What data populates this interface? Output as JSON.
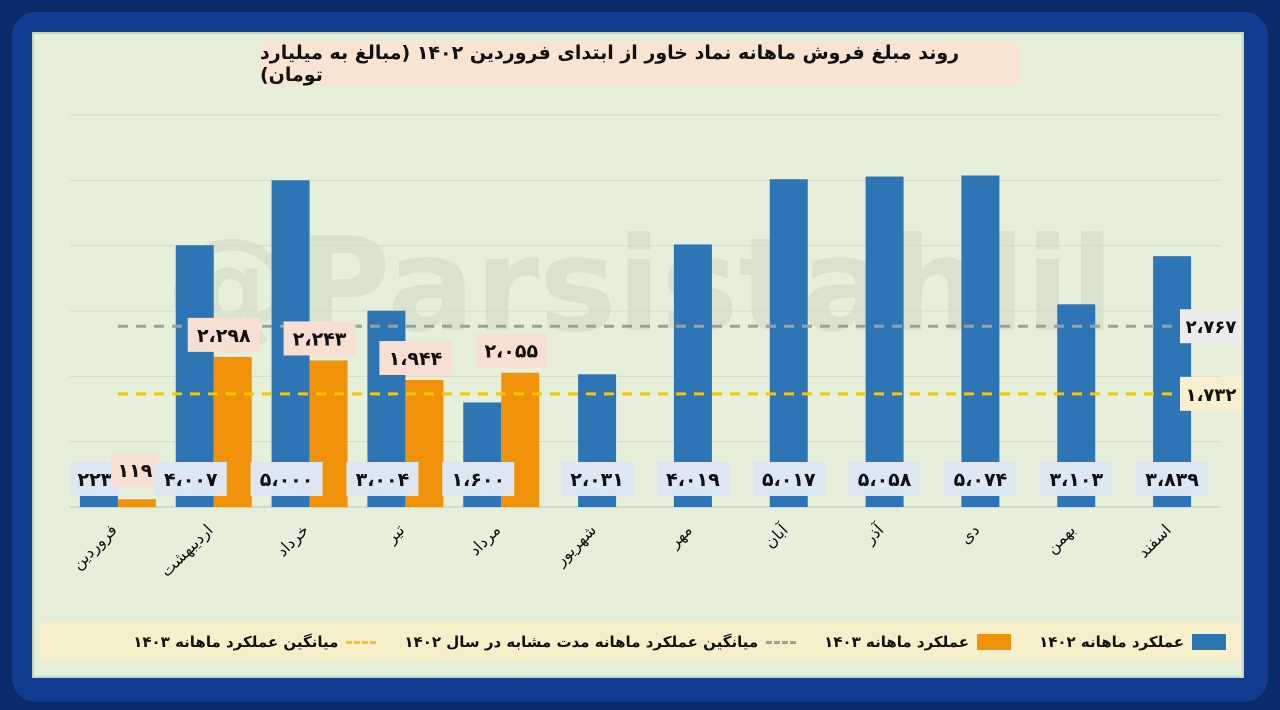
{
  "title": "روند مبلغ فروش ماهانه نماد خاور از ابتدای فروردین ۱۴۰۲ (مبالغ به میلیارد تومان)",
  "watermark": "@Parsistahlil",
  "colors": {
    "series_1402": "#2e75b6",
    "series_1403": "#f0930b",
    "avg_1402": "#9e9e9e",
    "avg_1403": "#f6c600",
    "label_bg": "#f7e0d3",
    "label_bg_1402": "#dce7f3",
    "panel_bg": "#e6efd9"
  },
  "legend": {
    "s1402": "عملکرد ماهانه ۱۴۰۲",
    "s1403": "عملکرد ماهانه ۱۴۰۳",
    "avg1402": "میانگین عملکرد ماهانه مدت مشابه در سال ۱۴۰۲",
    "avg1403": "میانگین عملکرد ماهانه ۱۴۰۳"
  },
  "chart_data": {
    "type": "bar",
    "title": "روند مبلغ فروش ماهانه نماد خاور از ابتدای فروردین ۱۴۰۲ (مبالغ به میلیارد تومان)",
    "categories": [
      "فروردین",
      "اردیبهشت",
      "خرداد",
      "تیر",
      "مرداد",
      "شهریور",
      "مهر",
      "آبان",
      "آذر",
      "دی",
      "بهمن",
      "اسفند"
    ],
    "series": [
      {
        "name": "عملکرد ماهانه ۱۴۰۲",
        "values": [
          223,
          4007,
          5000,
          3004,
          1600,
          2031,
          4019,
          5017,
          5058,
          5074,
          3103,
          3839
        ],
        "labels": [
          "۲۲۳",
          "۴،۰۰۷",
          "۵،۰۰۰",
          "۳،۰۰۴",
          "۱،۶۰۰",
          "۲،۰۳۱",
          "۴،۰۱۹",
          "۵،۰۱۷",
          "۵،۰۵۸",
          "۵،۰۷۴",
          "۳،۱۰۳",
          "۳،۸۳۹"
        ]
      },
      {
        "name": "عملکرد ماهانه ۱۴۰۳",
        "values": [
          119,
          2298,
          2243,
          1944,
          2055,
          null,
          null,
          null,
          null,
          null,
          null,
          null
        ],
        "labels": [
          "۱۱۹",
          "۲،۲۹۸",
          "۲،۲۴۳",
          "۱،۹۴۴",
          "۲،۰۵۵",
          "",
          "",
          "",
          "",
          "",
          "",
          ""
        ]
      }
    ],
    "reference_lines": [
      {
        "name": "میانگین عملکرد ماهانه مدت مشابه در سال ۱۴۰۲",
        "value": 2767,
        "label": "۲،۷۶۷",
        "style": "dashed"
      },
      {
        "name": "میانگین عملکرد ماهانه ۱۴۰۳",
        "value": 1732,
        "label": "۱،۷۳۲",
        "style": "dashed"
      }
    ],
    "ylim": [
      0,
      6000
    ],
    "grid": true,
    "legend_position": "bottom"
  }
}
